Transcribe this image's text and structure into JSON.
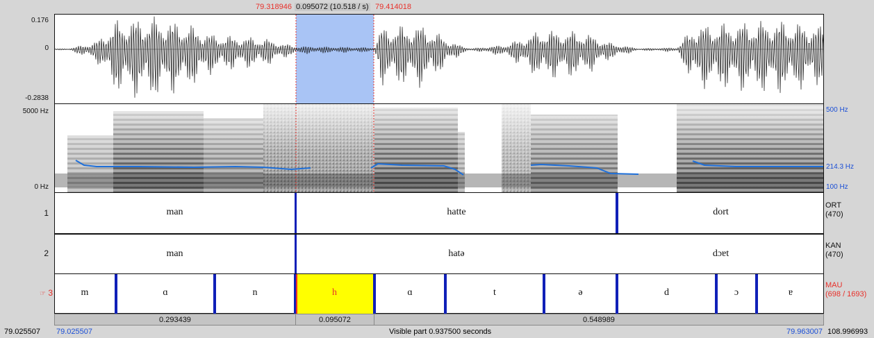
{
  "selection": {
    "start": "79.318946",
    "duration": "0.095072 (10.518 / s)",
    "end": "79.414018"
  },
  "waveform": {
    "max": "0.176",
    "zero": "0",
    "min": "-0.2838"
  },
  "spectrogram": {
    "freq_top": "5000 Hz",
    "freq_bottom": "0 Hz",
    "pitch_top": "500 Hz",
    "pitch_value": "214.3 Hz",
    "pitch_bottom": "100 Hz"
  },
  "tiers": [
    {
      "number": "1",
      "name": "ORT",
      "count": "(470)",
      "labels": [
        "man",
        "hatte",
        "dort"
      ]
    },
    {
      "number": "2",
      "name": "KAN",
      "count": "(470)",
      "labels": [
        "man",
        "hatə",
        "dɔɐt"
      ]
    },
    {
      "number": "3",
      "pointer_icon": "hand-pointer-icon",
      "pointer_glyph": "☞",
      "name": "MAU",
      "count": "(698 / 1693)",
      "labels": [
        "m",
        "ɑ",
        "n",
        "h",
        "ɑ",
        "t",
        "ə",
        "d",
        "ɔ",
        "ɐ"
      ]
    }
  ],
  "durations": [
    "0.293439",
    "0.095072",
    "0.548989"
  ],
  "status": {
    "total_start": "79.025507",
    "visible_start": "79.025507",
    "visible_part": "Visible part 0.937500 seconds",
    "visible_end": "79.963007",
    "total_end": "108.996993"
  },
  "colors": {
    "selection_fill": "#a9c4f5",
    "selected_interval": "#ffff00",
    "boundary": "#1020b8",
    "pitch_line": "#1e6fd9",
    "accent_red": "#e8302a"
  }
}
